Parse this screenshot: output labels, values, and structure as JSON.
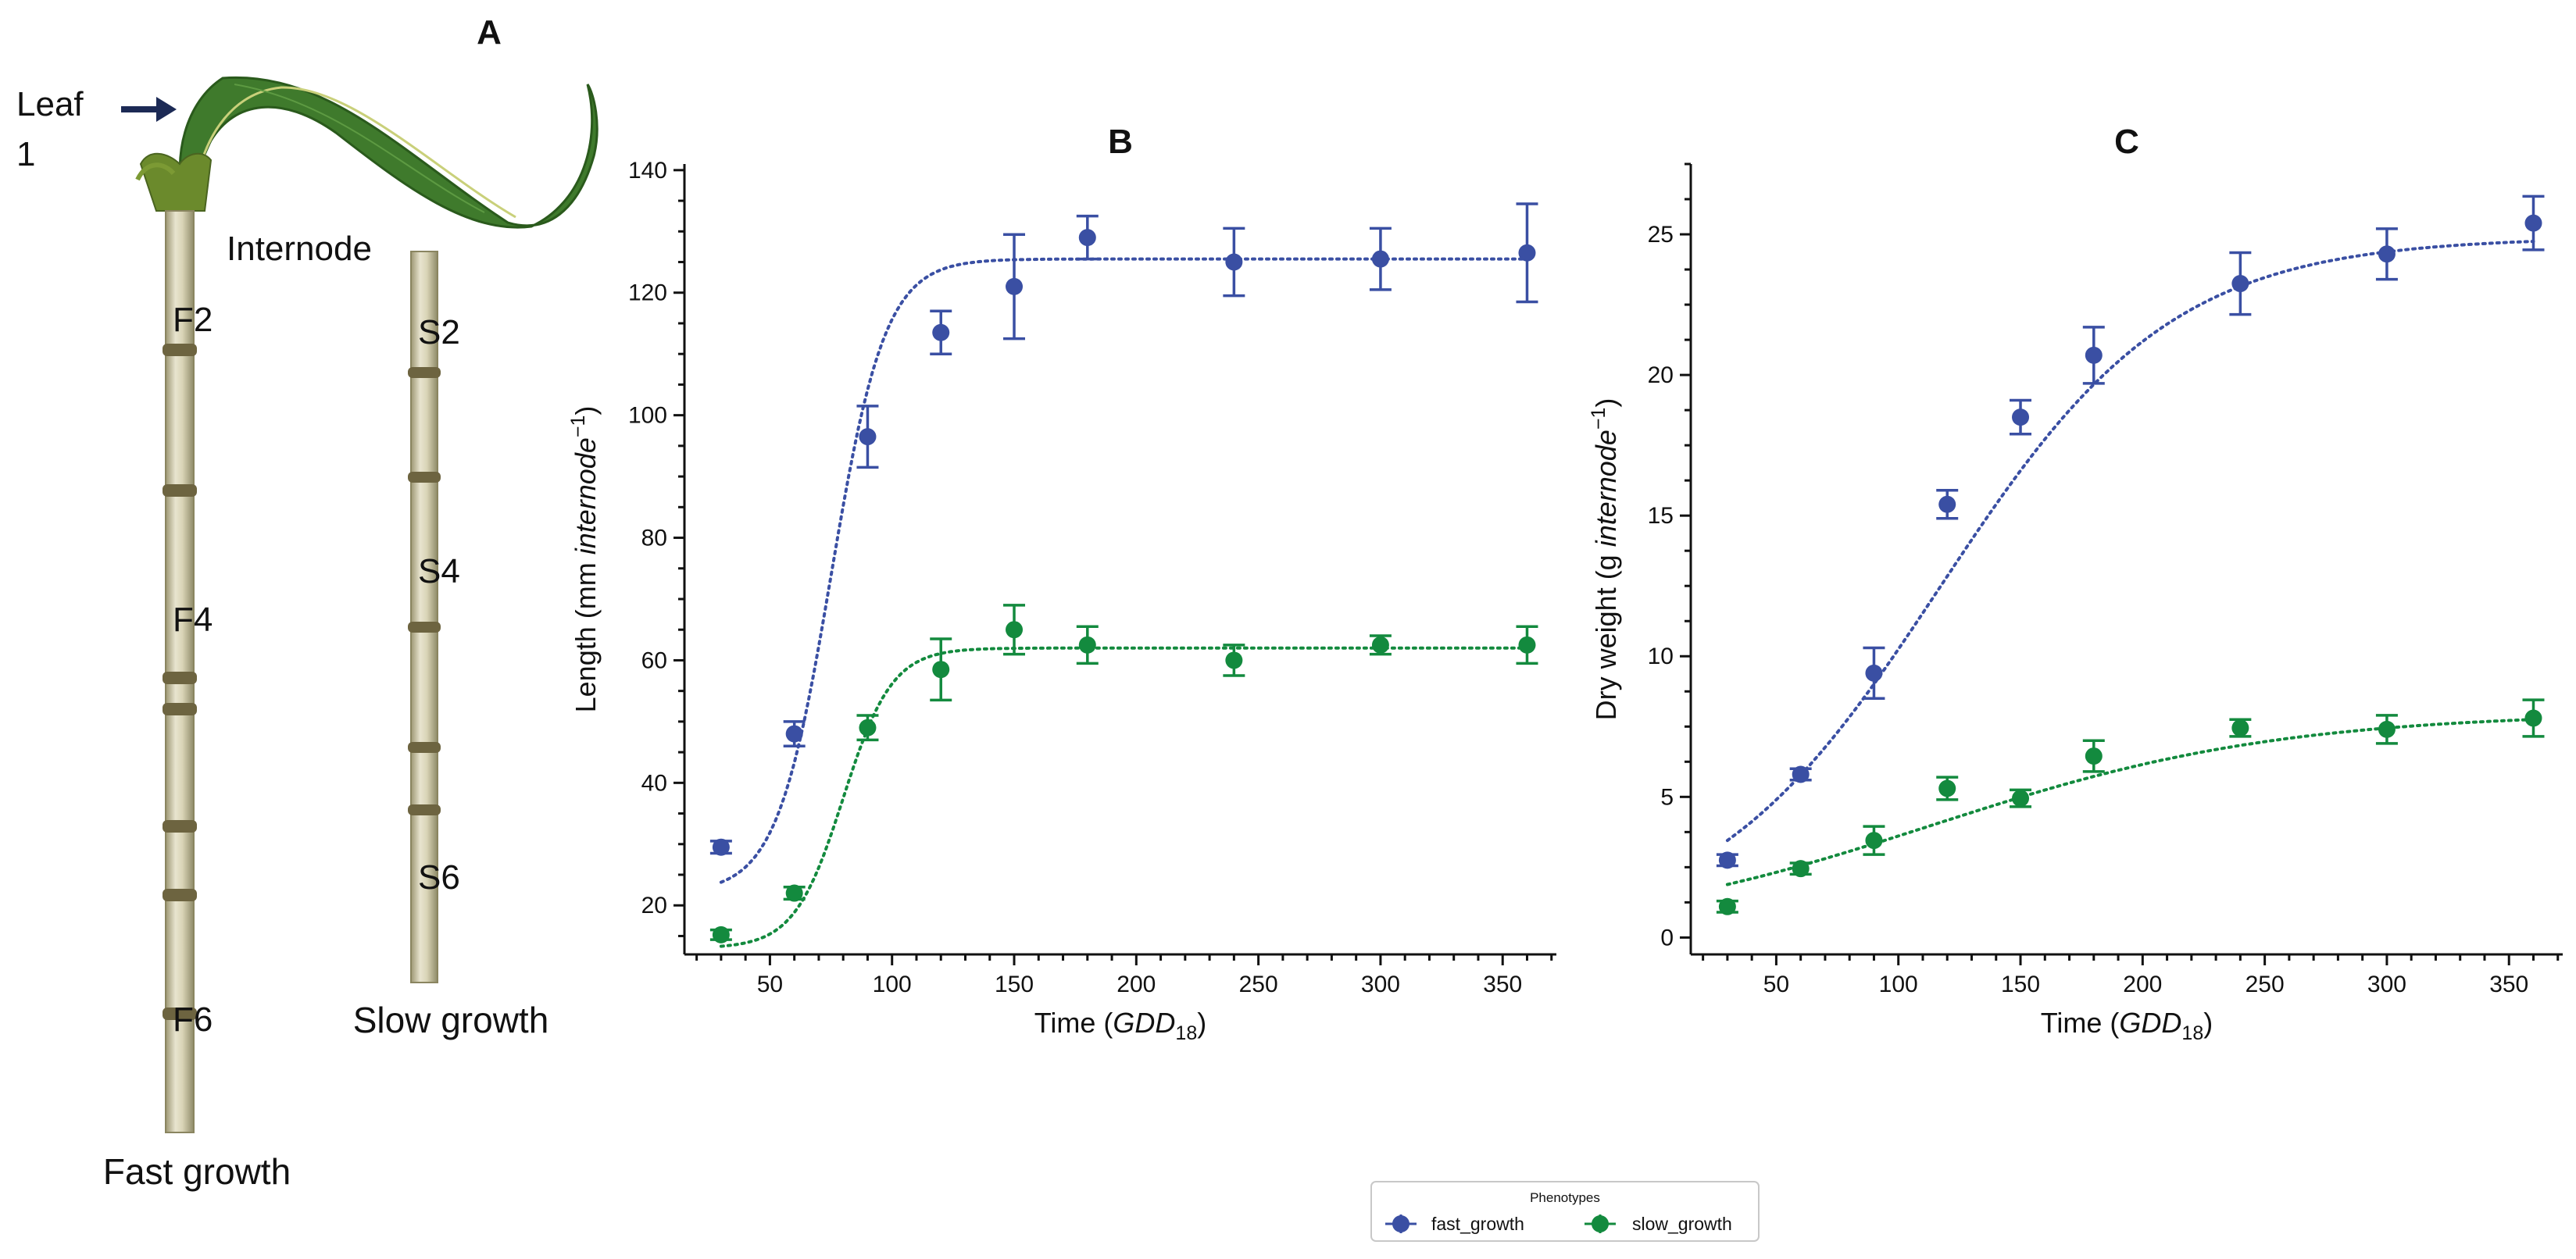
{
  "panel_a": {
    "letter": "A",
    "leaf_label": "Leaf\n1",
    "internode_label": "Internode",
    "fast_labels": [
      "F2",
      "F4",
      "F6"
    ],
    "slow_labels": [
      "S2",
      "S4",
      "S6"
    ],
    "fast_caption": "Fast growth",
    "slow_caption": "Slow growth"
  },
  "colors": {
    "fast_growth": "#3a4fa3",
    "slow_growth": "#138a3e"
  },
  "legend": {
    "title": "Phenotypes",
    "entries": [
      "fast_growth",
      "slow_growth"
    ]
  },
  "chart_data": [
    {
      "type": "scatter",
      "panel": "B",
      "title": "B",
      "xlabel": "Time (GDD18)",
      "ylabel": "Length (mm internode−1)",
      "xlim": [
        15,
        372
      ],
      "ylim": [
        12,
        141
      ],
      "xticks": [
        50,
        100,
        150,
        200,
        250,
        300,
        350
      ],
      "yticks": [
        20,
        40,
        60,
        80,
        100,
        120,
        140
      ],
      "x": [
        30,
        60,
        90,
        120,
        150,
        180,
        240,
        300,
        360
      ],
      "series": [
        {
          "name": "fast_growth",
          "values": [
            29.5,
            48,
            96.5,
            113.5,
            121,
            129,
            125,
            125.5,
            126.5
          ],
          "errors": [
            1,
            2,
            5,
            3.5,
            8.5,
            3.5,
            5.5,
            5,
            8
          ],
          "fit": {
            "a": 125.5,
            "k": 0.09,
            "x0": 75,
            "base": 22
          }
        },
        {
          "name": "slow_growth",
          "values": [
            15.2,
            22,
            49,
            58.5,
            65,
            62.5,
            60,
            62.5,
            62.5
          ],
          "errors": [
            0.8,
            1,
            2,
            5,
            4,
            3,
            2.5,
            1.5,
            3
          ],
          "fit": {
            "a": 62,
            "k": 0.1,
            "x0": 80,
            "base": 13
          }
        }
      ]
    },
    {
      "type": "scatter",
      "panel": "C",
      "title": "C",
      "xlabel": "Time (GDD18)",
      "ylabel": "Dry weight (g internode−1)",
      "xlim": [
        15,
        372
      ],
      "ylim": [
        -0.6,
        27.5
      ],
      "xticks": [
        50,
        100,
        150,
        200,
        250,
        300,
        350
      ],
      "yticks": [
        0,
        5,
        10,
        15,
        20,
        25
      ],
      "x": [
        30,
        60,
        90,
        120,
        150,
        180,
        240,
        300,
        360
      ],
      "series": [
        {
          "name": "fast_growth",
          "values": [
            2.75,
            5.8,
            9.4,
            15.4,
            18.5,
            20.7,
            23.25,
            24.3,
            25.4
          ],
          "errors": [
            0.2,
            0.2,
            0.9,
            0.5,
            0.6,
            1,
            1.1,
            0.9,
            0.95
          ],
          "fit": {
            "a": 24.9,
            "k": 0.021,
            "x0": 117,
            "base": 0
          }
        },
        {
          "name": "slow_growth",
          "values": [
            1.1,
            2.45,
            3.45,
            5.3,
            4.95,
            6.45,
            7.45,
            7.4,
            7.8
          ],
          "errors": [
            0.2,
            0.2,
            0.5,
            0.4,
            0.3,
            0.55,
            0.3,
            0.5,
            0.65
          ],
          "fit": {
            "a": 8,
            "k": 0.014,
            "x0": 114,
            "base": 0
          }
        }
      ]
    }
  ]
}
